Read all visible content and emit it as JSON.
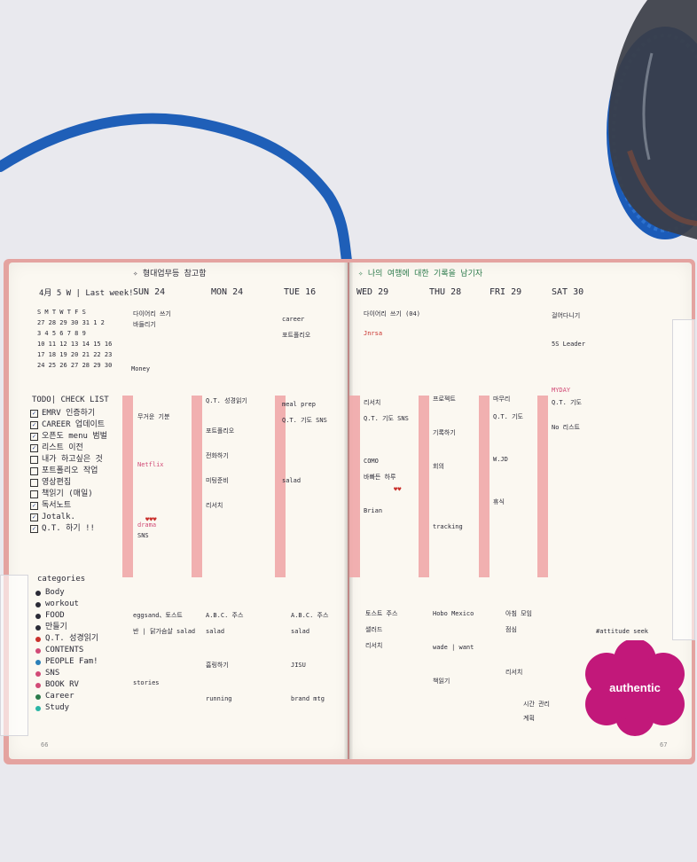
{
  "left_page": {
    "heading_note": "✧ 형대업무등 참고함",
    "month_label": "4月 5 W | Last week!",
    "days": [
      "SUN 24",
      "MON 24",
      "TUE 16"
    ],
    "calendar_rows": [
      "S M T W T F S",
      "27 28 29 30 31 1 2",
      "3 4 5 6 7 8 9",
      "10 11 12 13 14 15 16",
      "17 18 19 20 21 22 23",
      "24 25 26 27 28 29 30"
    ],
    "money_label": "Money",
    "todo_title": "TODO| CHECK LIST",
    "todo_items": [
      {
        "label": "EMRV 인증하기",
        "mark": "✓"
      },
      {
        "label": "CAREER 업데이트",
        "mark": "✓"
      },
      {
        "label": "오픈도 menu 범벌",
        "mark": "✓"
      },
      {
        "label": "리스트 이전",
        "mark": "✓"
      },
      {
        "label": "내가 하고싶은 것",
        "mark": ""
      },
      {
        "label": "포트폴리오 작업",
        "mark": ""
      },
      {
        "label": "영상편집",
        "mark": ""
      },
      {
        "label": "책읽기 (매일)",
        "mark": ""
      },
      {
        "label": "독서노트",
        "mark": "✓"
      },
      {
        "label": "Jotalk.",
        "mark": "✓"
      },
      {
        "label": "Q.T. 하기 !!",
        "mark": "✓"
      }
    ],
    "categories_title": "categories",
    "categories": [
      {
        "label": "Body",
        "color": "#2a2a36"
      },
      {
        "label": "workout",
        "color": "#2a2a36"
      },
      {
        "label": "FOOD",
        "color": "#2a2a36"
      },
      {
        "label": "만들기",
        "color": "#2a2a36"
      },
      {
        "label": "Q.T. 성경읽기",
        "color": "#c9302c"
      },
      {
        "label": "CONTENTS",
        "color": "#d14a76"
      },
      {
        "label": "PEOPLE Fam!",
        "color": "#2a7fb8"
      },
      {
        "label": "SNS",
        "color": "#d14a76"
      },
      {
        "label": "BOOK RV",
        "color": "#d14a76"
      },
      {
        "label": "Career",
        "color": "#2b7a4b"
      },
      {
        "label": "Study",
        "color": "#2bb5a6"
      }
    ],
    "notes_sun": [
      "다이어리 쓰기",
      "바들리기",
      "무거운 기분",
      "Netflix",
      "drama",
      "SNS"
    ],
    "notes_mon": [
      "Q.T. 성경읽기",
      "포트폴리오",
      "전화하기",
      "미팅준비",
      "리서치"
    ],
    "notes_tue": [
      "career",
      "포트폴리오",
      "meal prep",
      "Q.T. 기도 SNS",
      "salad"
    ],
    "bottom_sun": [
      "eggsand、토스트",
      "반 | 닭가슴살 salad",
      "stories"
    ],
    "bottom_mon": [
      "A.B.C. 주스",
      "salad",
      "흠링하기",
      "running"
    ],
    "bottom_tue": [
      "A.B.C. 주스",
      "salad",
      "JISU",
      "brand mtg"
    ],
    "page_num": "66"
  },
  "right_page": {
    "heading_note": "✧ 나의 여행에 대한 기록을 남기자",
    "days": [
      "WED 29",
      "THU 28",
      "FRI 29",
      "SAT 30"
    ],
    "notes_wed": [
      "다이어리 쓰기 (04)",
      "Jnrsa",
      "리서치",
      "Q.T. 기도 SNS",
      "COMO",
      "바빠든 하루",
      "Brian"
    ],
    "notes_thu": [
      "프로젝트",
      "기록하기",
      "회의",
      "tracking"
    ],
    "notes_fri": [
      "마무리",
      "Q.T. 기도",
      "W.JD",
      "휴식"
    ],
    "notes_sat": [
      "걸어다니기",
      "5S Leader",
      "MYDAY",
      "Q.T. 기도",
      "No 리스트"
    ],
    "bottom_wed": [
      "토스트 주스",
      "샐러드",
      "리서치"
    ],
    "bottom_thu": [
      "Hobo Mexico",
      "wade | want",
      "책읽기"
    ],
    "bottom_fri": [
      "아침 모임",
      "점심",
      "리서치"
    ],
    "bottom_sat": [
      "#attitude seek",
      "시간 관리",
      "계획"
    ],
    "badge": "authentic",
    "page_num": "67"
  }
}
